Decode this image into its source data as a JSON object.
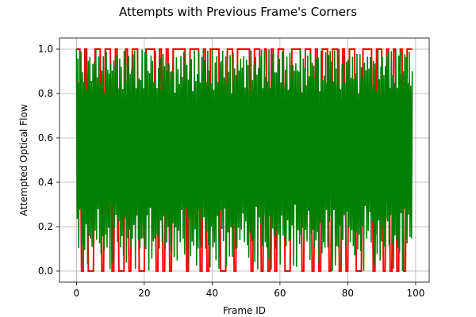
{
  "chart_data": {
    "type": "line",
    "title": "Attempts with Previous Frame's Corners",
    "xlabel": "Frame ID",
    "ylabel": "Attempted Optical Flow",
    "xlim": [
      -5,
      104
    ],
    "ylim": [
      -0.05,
      1.05
    ],
    "x_ticks": [
      0,
      20,
      40,
      60,
      80,
      100
    ],
    "y_ticks": [
      0.0,
      0.2,
      0.4,
      0.6,
      0.8,
      1.0
    ],
    "x_tick_labels": [
      "0",
      "20",
      "40",
      "60",
      "80",
      "100"
    ],
    "y_tick_labels": [
      "0.0",
      "0.2",
      "0.4",
      "0.6",
      "0.8",
      "1.0"
    ],
    "grid": true,
    "colors": {
      "red_series": "#ff0000",
      "green_series": "#008000"
    },
    "frame_range": [
      0,
      99
    ],
    "red_zero_frames": [
      2,
      4,
      5,
      8,
      11,
      13,
      14,
      16,
      19,
      20,
      24,
      26,
      28,
      33,
      37,
      39,
      43,
      44,
      47,
      52,
      55,
      57,
      59,
      62,
      63,
      67,
      70,
      72,
      75,
      78,
      80,
      83,
      84,
      88,
      91,
      93,
      95,
      97
    ]
  }
}
